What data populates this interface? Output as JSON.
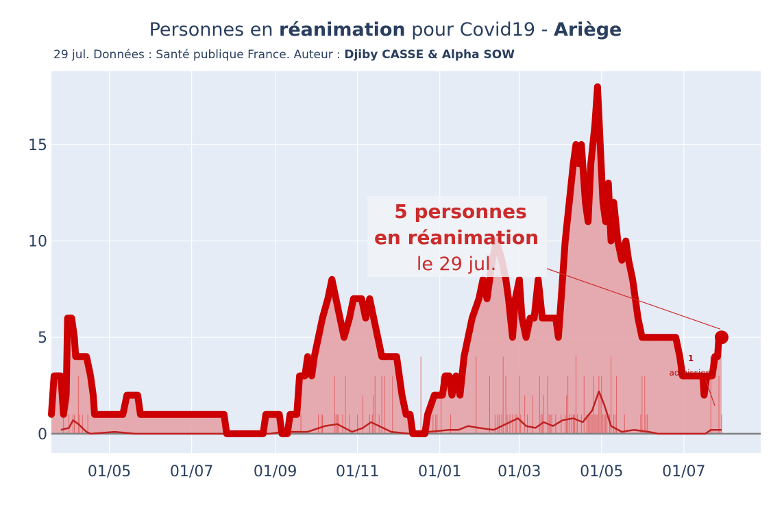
{
  "header": {
    "title_pre": "Personnes en ",
    "title_bold1": "réanimation",
    "title_mid": " pour Covid19 - ",
    "title_bold2": "Ariège",
    "subtitle_pre": "29 jul. Données : Santé publique France. Auteur : ",
    "subtitle_bold": "Djiby CASSE & Alpha SOW"
  },
  "annotation": {
    "line1": "5 personnes",
    "line2": "en réanimation",
    "line3": "le 29 jul.",
    "admissions_count": "1",
    "admissions_label": "admissions"
  },
  "chart_data": {
    "type": "line",
    "x_range": [
      "2020-03-19",
      "2021-08-27"
    ],
    "ylim": [
      -1,
      18.8
    ],
    "y_ticks": [
      0,
      5,
      10,
      15
    ],
    "x_ticks": [
      {
        "date": "2020-05-01",
        "label": "01/05"
      },
      {
        "date": "2020-07-01",
        "label": "01/07"
      },
      {
        "date": "2020-09-01",
        "label": "01/09"
      },
      {
        "date": "2020-11-01",
        "label": "01/11"
      },
      {
        "date": "2021-01-01",
        "label": "01/01"
      },
      {
        "date": "2021-03-01",
        "label": "01/03"
      },
      {
        "date": "2021-05-01",
        "label": "01/05"
      },
      {
        "date": "2021-07-01",
        "label": "01/07"
      }
    ],
    "colors": {
      "plot_bg": "#e5ecf6",
      "reanimation_line": "#cc0000",
      "reanimation_fill": "#e4a3a8",
      "admissions_line": "#c02020",
      "admissions_bars": "#e05050",
      "zero_line": "#808080",
      "grid": "#ffffff"
    },
    "series": [
      {
        "name": "",
        "points": [
          [
            "2020-03-19",
            1
          ],
          [
            "2020-03-21",
            3
          ],
          [
            "2020-03-26",
            3
          ],
          [
            "2020-03-28",
            1
          ],
          [
            "2020-03-30",
            2
          ],
          [
            "2020-03-31",
            6
          ],
          [
            "2020-04-03",
            6
          ],
          [
            "2020-04-05",
            5
          ],
          [
            "2020-04-06",
            4
          ],
          [
            "2020-04-14",
            4
          ],
          [
            "2020-04-17",
            3
          ],
          [
            "2020-04-19",
            2
          ],
          [
            "2020-04-20",
            1
          ],
          [
            "2020-05-11",
            1
          ],
          [
            "2020-05-14",
            2
          ],
          [
            "2020-05-22",
            2
          ],
          [
            "2020-05-24",
            1
          ],
          [
            "2020-07-25",
            1
          ],
          [
            "2020-07-27",
            0
          ],
          [
            "2020-08-23",
            0
          ],
          [
            "2020-08-25",
            1
          ],
          [
            "2020-09-04",
            1
          ],
          [
            "2020-09-06",
            0
          ],
          [
            "2020-09-10",
            0
          ],
          [
            "2020-09-12",
            1
          ],
          [
            "2020-09-17",
            1
          ],
          [
            "2020-09-19",
            3
          ],
          [
            "2020-09-23",
            3
          ],
          [
            "2020-09-25",
            4
          ],
          [
            "2020-09-28",
            3
          ],
          [
            "2020-09-30",
            4
          ],
          [
            "2020-10-03",
            5
          ],
          [
            "2020-10-06",
            6
          ],
          [
            "2020-10-10",
            7
          ],
          [
            "2020-10-13",
            8
          ],
          [
            "2020-10-16",
            7
          ],
          [
            "2020-10-19",
            6
          ],
          [
            "2020-10-22",
            5
          ],
          [
            "2020-10-26",
            6
          ],
          [
            "2020-10-29",
            7
          ],
          [
            "2020-11-04",
            7
          ],
          [
            "2020-11-07",
            6
          ],
          [
            "2020-11-10",
            7
          ],
          [
            "2020-11-13",
            6
          ],
          [
            "2020-11-16",
            5
          ],
          [
            "2020-11-19",
            4
          ],
          [
            "2020-11-30",
            4
          ],
          [
            "2020-12-04",
            2
          ],
          [
            "2020-12-07",
            1
          ],
          [
            "2020-12-10",
            1
          ],
          [
            "2020-12-12",
            0
          ],
          [
            "2020-12-21",
            0
          ],
          [
            "2020-12-23",
            1
          ],
          [
            "2020-12-28",
            2
          ],
          [
            "2021-01-03",
            2
          ],
          [
            "2021-01-05",
            3
          ],
          [
            "2021-01-08",
            3
          ],
          [
            "2021-01-10",
            2
          ],
          [
            "2021-01-13",
            3
          ],
          [
            "2021-01-16",
            2
          ],
          [
            "2021-01-19",
            4
          ],
          [
            "2021-01-22",
            5
          ],
          [
            "2021-01-25",
            6
          ],
          [
            "2021-01-30",
            7
          ],
          [
            "2021-02-02",
            8
          ],
          [
            "2021-02-05",
            7
          ],
          [
            "2021-02-09",
            9
          ],
          [
            "2021-02-12",
            10
          ],
          [
            "2021-02-16",
            9
          ],
          [
            "2021-02-19",
            8
          ],
          [
            "2021-02-21",
            7
          ],
          [
            "2021-02-24",
            5
          ],
          [
            "2021-02-26",
            7
          ],
          [
            "2021-03-01",
            8
          ],
          [
            "2021-03-03",
            6
          ],
          [
            "2021-03-06",
            5
          ],
          [
            "2021-03-09",
            6
          ],
          [
            "2021-03-12",
            6
          ],
          [
            "2021-03-15",
            8
          ],
          [
            "2021-03-18",
            6
          ],
          [
            "2021-03-28",
            6
          ],
          [
            "2021-03-30",
            5
          ],
          [
            "2021-04-02",
            8
          ],
          [
            "2021-04-04",
            10
          ],
          [
            "2021-04-07",
            12
          ],
          [
            "2021-04-10",
            14
          ],
          [
            "2021-04-12",
            15
          ],
          [
            "2021-04-14",
            14
          ],
          [
            "2021-04-16",
            15
          ],
          [
            "2021-04-19",
            12
          ],
          [
            "2021-04-21",
            11
          ],
          [
            "2021-04-23",
            14
          ],
          [
            "2021-04-26",
            16
          ],
          [
            "2021-04-28",
            18
          ],
          [
            "2021-04-30",
            15
          ],
          [
            "2021-05-02",
            12
          ],
          [
            "2021-05-04",
            11
          ],
          [
            "2021-05-06",
            13
          ],
          [
            "2021-05-08",
            10
          ],
          [
            "2021-05-10",
            12
          ],
          [
            "2021-05-13",
            10
          ],
          [
            "2021-05-16",
            9
          ],
          [
            "2021-05-19",
            10
          ],
          [
            "2021-05-21",
            9
          ],
          [
            "2021-05-24",
            8
          ],
          [
            "2021-05-26",
            7
          ],
          [
            "2021-05-28",
            6
          ],
          [
            "2021-05-31",
            5
          ],
          [
            "2021-06-25",
            5
          ],
          [
            "2021-06-28",
            4
          ],
          [
            "2021-06-30",
            3
          ],
          [
            "2021-07-15",
            3
          ],
          [
            "2021-07-16",
            2
          ],
          [
            "2021-07-18",
            3
          ],
          [
            "2021-07-22",
            3
          ],
          [
            "2021-07-24",
            4
          ],
          [
            "2021-07-26",
            4
          ],
          [
            "2021-07-27",
            5
          ],
          [
            "2021-07-29",
            5
          ]
        ]
      },
      {
        "name": "",
        "points": [
          [
            "2020-03-26",
            0.2
          ],
          [
            "2020-04-01",
            0.3
          ],
          [
            "2020-04-04",
            0.7
          ],
          [
            "2020-04-08",
            0.5
          ],
          [
            "2020-04-14",
            0.1
          ],
          [
            "2020-04-17",
            0
          ],
          [
            "2020-05-05",
            0.1
          ],
          [
            "2020-05-20",
            0
          ],
          [
            "2020-08-28",
            0
          ],
          [
            "2020-09-06",
            0.1
          ],
          [
            "2020-09-25",
            0.1
          ],
          [
            "2020-10-08",
            0.4
          ],
          [
            "2020-10-17",
            0.5
          ],
          [
            "2020-10-28",
            0.1
          ],
          [
            "2020-11-05",
            0.3
          ],
          [
            "2020-11-11",
            0.6
          ],
          [
            "2020-11-17",
            0.4
          ],
          [
            "2020-11-26",
            0.1
          ],
          [
            "2020-12-10",
            0
          ],
          [
            "2021-01-08",
            0.2
          ],
          [
            "2021-01-15",
            0.2
          ],
          [
            "2021-01-22",
            0.4
          ],
          [
            "2021-01-30",
            0.3
          ],
          [
            "2021-02-10",
            0.2
          ],
          [
            "2021-02-22",
            0.6
          ],
          [
            "2021-02-28",
            0.8
          ],
          [
            "2021-03-06",
            0.4
          ],
          [
            "2021-03-13",
            0.3
          ],
          [
            "2021-03-19",
            0.6
          ],
          [
            "2021-03-26",
            0.4
          ],
          [
            "2021-04-02",
            0.7
          ],
          [
            "2021-04-10",
            0.8
          ],
          [
            "2021-04-17",
            0.6
          ],
          [
            "2021-04-24",
            1.2
          ],
          [
            "2021-04-29",
            2.2
          ],
          [
            "2021-05-03",
            1.5
          ],
          [
            "2021-05-08",
            0.4
          ],
          [
            "2021-05-16",
            0.1
          ],
          [
            "2021-05-25",
            0.2
          ],
          [
            "2021-06-05",
            0.1
          ],
          [
            "2021-06-12",
            0
          ],
          [
            "2021-07-17",
            0
          ],
          [
            "2021-07-21",
            0.2
          ],
          [
            "2021-07-29",
            0.2
          ]
        ]
      }
    ]
  }
}
